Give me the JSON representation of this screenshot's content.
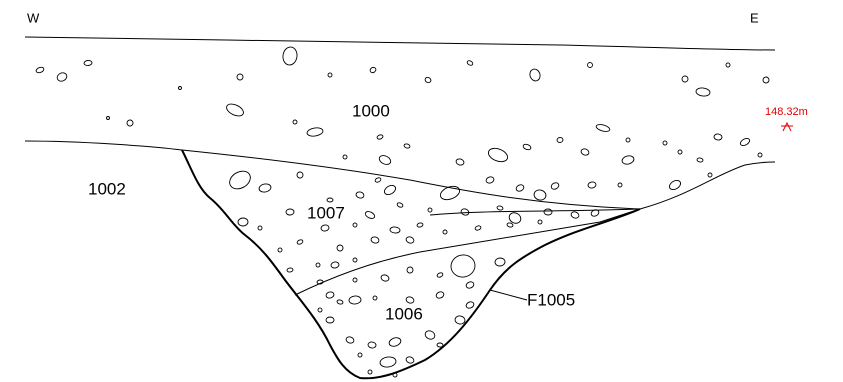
{
  "orientation": {
    "west": "W",
    "east": "E"
  },
  "contexts": [
    {
      "label": "1000"
    },
    {
      "label": "1002"
    },
    {
      "label": "1007"
    },
    {
      "label": "1006"
    }
  ],
  "feature": {
    "label": "F1005"
  },
  "datum": {
    "label": "148.32m"
  }
}
